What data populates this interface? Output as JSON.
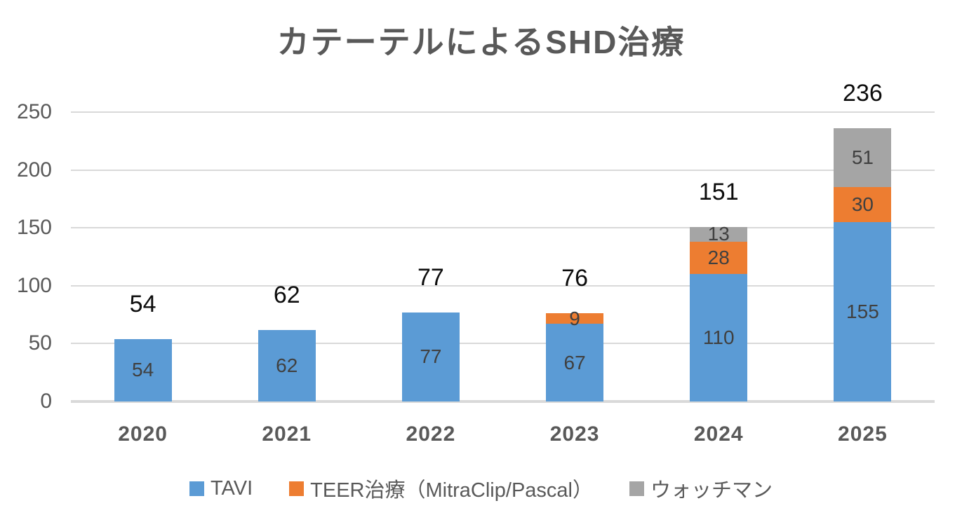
{
  "title": "カテーテルによるSHD治療",
  "chart_data": {
    "type": "bar",
    "stacked": true,
    "title": "カテーテルによるSHD治療",
    "categories": [
      "2020",
      "2021",
      "2022",
      "2023",
      "2024",
      "2025"
    ],
    "series": [
      {
        "name": "TAVI",
        "color": "#5B9BD5",
        "values": [
          54,
          62,
          77,
          67,
          110,
          155
        ]
      },
      {
        "name": "TEER治療（MitraClip/Pascal）",
        "color": "#ED7D31",
        "values": [
          0,
          0,
          0,
          9,
          28,
          30
        ]
      },
      {
        "name": "ウォッチマン",
        "color": "#A5A5A5",
        "values": [
          0,
          0,
          0,
          0,
          13,
          51
        ]
      }
    ],
    "totals": [
      54,
      62,
      77,
      76,
      151,
      236
    ],
    "xlabel": "",
    "ylabel": "",
    "y_ticks": [
      0,
      50,
      100,
      150,
      200,
      250
    ],
    "ylim": [
      0,
      250
    ],
    "grid": true,
    "legend_position": "bottom",
    "colors": {
      "gridline": "#D9D9D9",
      "axis_text": "#595959",
      "segment_label": "#404040",
      "total_label": "#0D0D0D",
      "title_text": "#595959",
      "background": "#FFFFFF"
    }
  }
}
